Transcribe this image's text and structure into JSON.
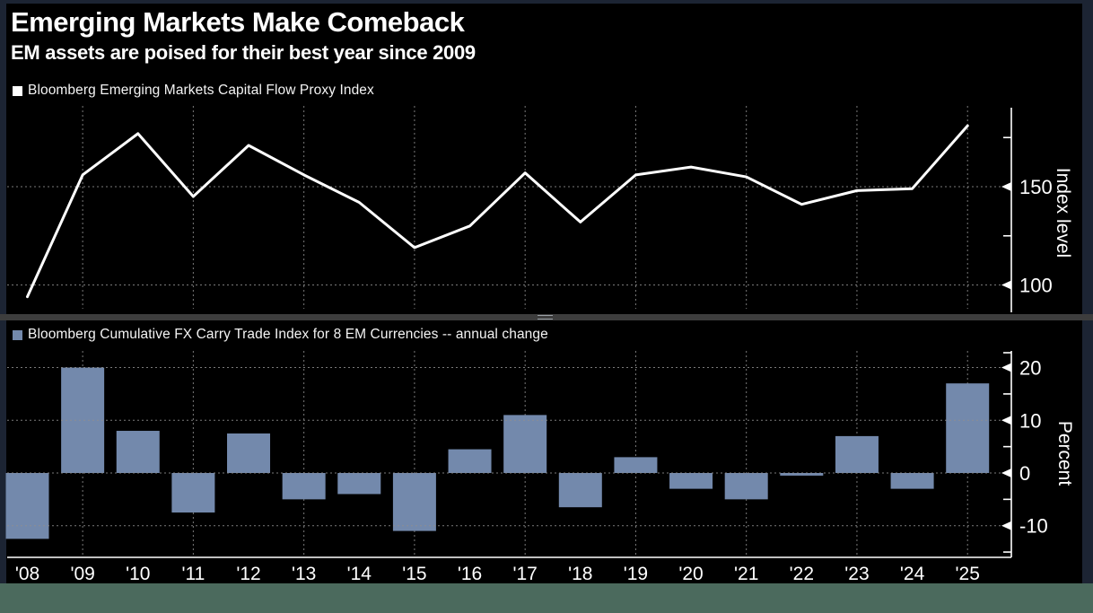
{
  "title": "Emerging Markets Make Comeback",
  "subtitle": "EM assets are poised for their best year since 2009",
  "legends": {
    "top": "Bloomberg Emerging Markets Capital Flow Proxy Index",
    "bottom": "Bloomberg Cumulative FX Carry Trade Index for 8 EM Currencies -- annual change"
  },
  "colors": {
    "page_background": "#1c2433",
    "plot_background": "#000000",
    "line_series": "#ffffff",
    "bar_series": "#7389ac",
    "gridline": "#909090",
    "axis": "#ffffff",
    "separator": "#3d3d3d",
    "footer_strip": "#4b6a5d",
    "text": "#ffffff"
  },
  "chart_data": [
    {
      "type": "line",
      "name": "Bloomberg Emerging Markets Capital Flow Proxy Index",
      "categories": [
        "'08",
        "'09",
        "'10",
        "'11",
        "'12",
        "'13",
        "'14",
        "'15",
        "'16",
        "'17",
        "'18",
        "'19",
        "'20",
        "'21",
        "'22",
        "'23",
        "'24",
        "'25"
      ],
      "values": [
        94,
        156,
        177,
        145,
        171,
        156,
        142,
        119,
        130,
        157,
        132,
        156,
        160,
        155,
        141,
        148,
        149,
        181
      ],
      "ylabel": "Index level",
      "ylim": [
        86,
        190
      ],
      "yticks": [
        100,
        150
      ],
      "yticks_minor": [
        125,
        175
      ],
      "grid_categories": [
        "'09",
        "'11",
        "'13",
        "'15",
        "'17",
        "'19",
        "'21",
        "'23",
        "'25"
      ],
      "legend_position": "top-left",
      "grid": "dashed"
    },
    {
      "type": "bar",
      "name": "Bloomberg Cumulative FX Carry Trade Index for 8 EM Currencies -- annual change",
      "categories": [
        "'08",
        "'09",
        "'10",
        "'11",
        "'12",
        "'13",
        "'14",
        "'15",
        "'16",
        "'17",
        "'18",
        "'19",
        "'20",
        "'21",
        "'22",
        "'23",
        "'24",
        "'25"
      ],
      "values": [
        -12.5,
        20,
        8,
        -7.5,
        7.5,
        -5,
        -4,
        -11,
        4.5,
        11,
        -6.5,
        3,
        -3,
        -5,
        -0.5,
        7,
        -3,
        17
      ],
      "ylabel": "Percent",
      "ylim": [
        -16,
        23
      ],
      "yticks": [
        -10,
        0,
        10,
        20
      ],
      "yticks_minor": [
        -15,
        -5,
        5,
        15
      ],
      "grid_categories": [
        "'09",
        "'11",
        "'13",
        "'15",
        "'17",
        "'19",
        "'21",
        "'23",
        "'25"
      ],
      "legend_position": "top-left",
      "grid": "dashed"
    }
  ]
}
